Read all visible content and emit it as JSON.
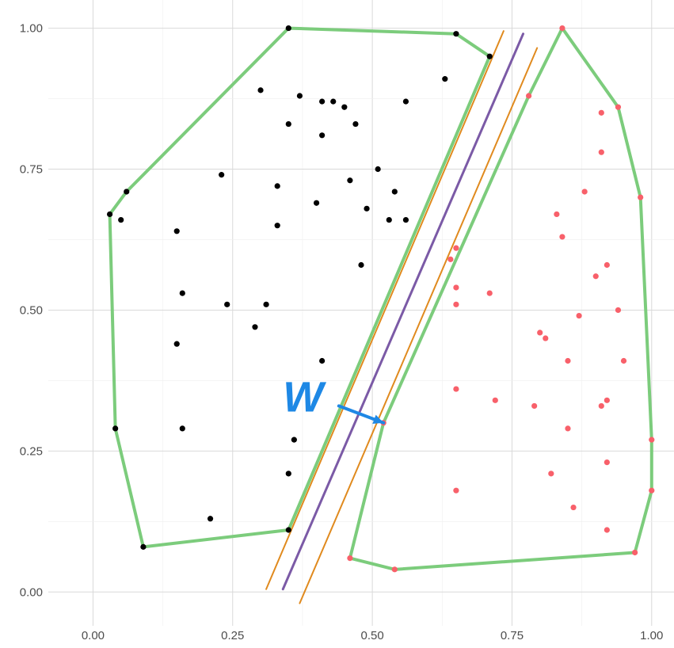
{
  "chart_data": {
    "type": "scatter",
    "xlim": [
      -0.08,
      1.04
    ],
    "ylim": [
      -0.06,
      1.05
    ],
    "grid": true,
    "x_ticks": [
      0.0,
      0.25,
      0.5,
      0.75,
      1.0
    ],
    "y_ticks": [
      0.0,
      0.25,
      0.5,
      0.75,
      1.0
    ],
    "x_tick_labels": [
      "0.00",
      "0.25",
      "0.50",
      "0.75",
      "1.00"
    ],
    "y_tick_labels": [
      "0.00",
      "0.25",
      "0.50",
      "0.75",
      "1.00"
    ],
    "series": [
      {
        "color": "#000000",
        "points": [
          [
            0.35,
            1.0
          ],
          [
            0.65,
            0.99
          ],
          [
            0.71,
            0.95
          ],
          [
            0.63,
            0.91
          ],
          [
            0.3,
            0.89
          ],
          [
            0.37,
            0.88
          ],
          [
            0.41,
            0.87
          ],
          [
            0.43,
            0.87
          ],
          [
            0.45,
            0.86
          ],
          [
            0.56,
            0.87
          ],
          [
            0.35,
            0.83
          ],
          [
            0.47,
            0.83
          ],
          [
            0.41,
            0.81
          ],
          [
            0.51,
            0.75
          ],
          [
            0.23,
            0.74
          ],
          [
            0.46,
            0.73
          ],
          [
            0.33,
            0.72
          ],
          [
            0.06,
            0.71
          ],
          [
            0.54,
            0.71
          ],
          [
            0.4,
            0.69
          ],
          [
            0.49,
            0.68
          ],
          [
            0.03,
            0.67
          ],
          [
            0.05,
            0.66
          ],
          [
            0.53,
            0.66
          ],
          [
            0.56,
            0.66
          ],
          [
            0.33,
            0.65
          ],
          [
            0.15,
            0.64
          ],
          [
            0.48,
            0.58
          ],
          [
            0.16,
            0.53
          ],
          [
            0.24,
            0.51
          ],
          [
            0.31,
            0.51
          ],
          [
            0.29,
            0.47
          ],
          [
            0.15,
            0.44
          ],
          [
            0.41,
            0.41
          ],
          [
            0.04,
            0.29
          ],
          [
            0.16,
            0.29
          ],
          [
            0.36,
            0.27
          ],
          [
            0.35,
            0.21
          ],
          [
            0.21,
            0.13
          ],
          [
            0.35,
            0.11
          ],
          [
            0.09,
            0.08
          ]
        ]
      },
      {
        "color": "#f8606a",
        "points": [
          [
            0.84,
            1.0
          ],
          [
            0.78,
            0.88
          ],
          [
            0.94,
            0.86
          ],
          [
            0.91,
            0.85
          ],
          [
            0.91,
            0.78
          ],
          [
            0.88,
            0.71
          ],
          [
            0.98,
            0.7
          ],
          [
            0.83,
            0.67
          ],
          [
            0.84,
            0.63
          ],
          [
            0.65,
            0.61
          ],
          [
            0.64,
            0.59
          ],
          [
            0.92,
            0.58
          ],
          [
            0.9,
            0.56
          ],
          [
            0.65,
            0.54
          ],
          [
            0.71,
            0.53
          ],
          [
            0.65,
            0.51
          ],
          [
            0.94,
            0.5
          ],
          [
            0.87,
            0.49
          ],
          [
            0.8,
            0.46
          ],
          [
            0.81,
            0.45
          ],
          [
            0.85,
            0.41
          ],
          [
            0.95,
            0.41
          ],
          [
            0.65,
            0.36
          ],
          [
            0.72,
            0.34
          ],
          [
            0.92,
            0.34
          ],
          [
            0.79,
            0.33
          ],
          [
            0.91,
            0.33
          ],
          [
            0.52,
            0.3
          ],
          [
            0.85,
            0.29
          ],
          [
            1.0,
            0.27
          ],
          [
            0.92,
            0.23
          ],
          [
            0.82,
            0.21
          ],
          [
            0.65,
            0.18
          ],
          [
            1.0,
            0.18
          ],
          [
            0.86,
            0.15
          ],
          [
            0.92,
            0.11
          ],
          [
            0.97,
            0.07
          ],
          [
            0.46,
            0.06
          ],
          [
            0.54,
            0.04
          ]
        ]
      }
    ],
    "hulls": [
      {
        "color": "#7ccc7c",
        "vertices": [
          [
            0.35,
            1.0
          ],
          [
            0.65,
            0.99
          ],
          [
            0.71,
            0.95
          ],
          [
            0.35,
            0.11
          ],
          [
            0.09,
            0.08
          ],
          [
            0.04,
            0.29
          ],
          [
            0.03,
            0.67
          ],
          [
            0.06,
            0.71
          ],
          [
            0.35,
            1.0
          ]
        ]
      },
      {
        "color": "#7ccc7c",
        "vertices": [
          [
            0.84,
            1.0
          ],
          [
            0.94,
            0.86
          ],
          [
            0.98,
            0.7
          ],
          [
            1.0,
            0.27
          ],
          [
            1.0,
            0.18
          ],
          [
            0.97,
            0.07
          ],
          [
            0.54,
            0.04
          ],
          [
            0.46,
            0.06
          ],
          [
            0.52,
            0.3
          ],
          [
            0.78,
            0.88
          ],
          [
            0.84,
            1.0
          ]
        ]
      }
    ],
    "lines": [
      {
        "color": "#7b5aa6",
        "from": [
          0.34,
          0.005
        ],
        "to": [
          0.77,
          0.99
        ]
      },
      {
        "color": "#e08a1e",
        "from": [
          0.31,
          0.005
        ],
        "to": [
          0.735,
          0.995
        ]
      },
      {
        "color": "#e08a1e",
        "from": [
          0.37,
          -0.02
        ],
        "to": [
          0.795,
          0.965
        ]
      }
    ],
    "annotations": [
      {
        "text": "W",
        "color": "#1e88e5",
        "at": [
          0.34,
          0.32
        ],
        "arrow_from": [
          0.44,
          0.33
        ],
        "arrow_to": [
          0.52,
          0.3
        ]
      }
    ]
  }
}
